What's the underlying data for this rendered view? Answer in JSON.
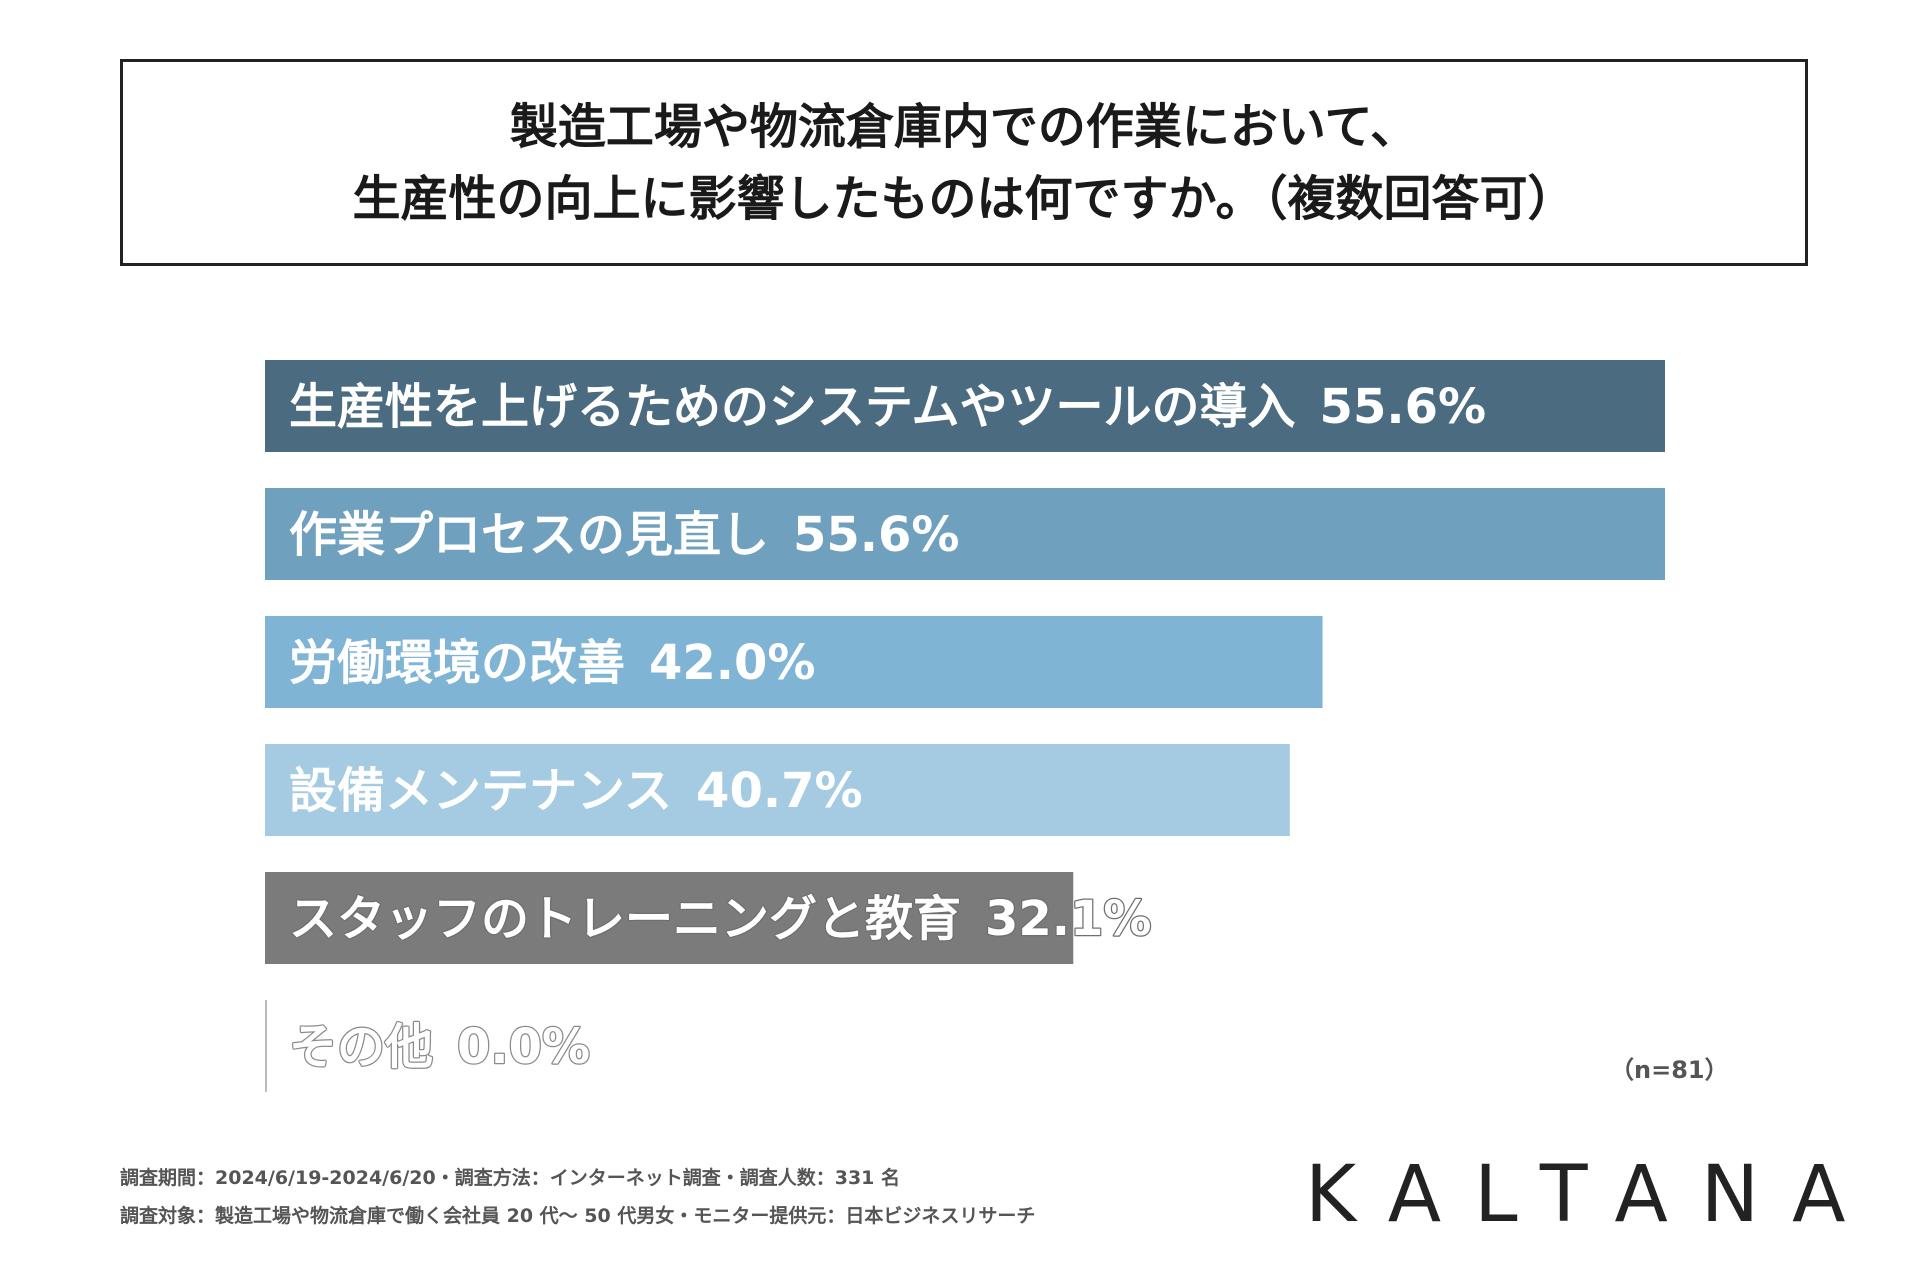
{
  "title": {
    "line1": "製造工場や物流倉庫内での作業において、",
    "line2": "生産性の向上に影響したものは何ですか。（複数回答可）"
  },
  "chart_data": {
    "type": "bar",
    "orientation": "horizontal",
    "unit": "%",
    "xlim": [
      0,
      55.6
    ],
    "grid": false,
    "legend": "none",
    "categories": [
      "生産性を上げるためのシステムやツールの導入",
      "作業プロセスの見直し",
      "労働環境の改善",
      "設備メンテナンス",
      "スタッフのトレーニングと教育",
      "その他"
    ],
    "values": [
      55.6,
      55.6,
      42.0,
      40.7,
      32.1,
      0.0
    ],
    "value_labels": [
      "55.6%",
      "55.6%",
      "42.0%",
      "40.7%",
      "32.1%",
      "0.0%"
    ],
    "colors": [
      "#4a6b80",
      "#6fa0be",
      "#7fb4d5",
      "#a5cbe2",
      "#7b7b7b",
      "#bbbbbb"
    ]
  },
  "sample_size": "（n=81）",
  "footer": {
    "line1": "調査期間：2024/6/19-2024/6/20・調査方法：インターネット調査・調査人数：331 名",
    "line2": "調査対象：製造工場や物流倉庫で働く会社員 20 代〜 50 代男女・モニター提供元：日本ビジネスリサーチ"
  },
  "brand": "KALTANA"
}
